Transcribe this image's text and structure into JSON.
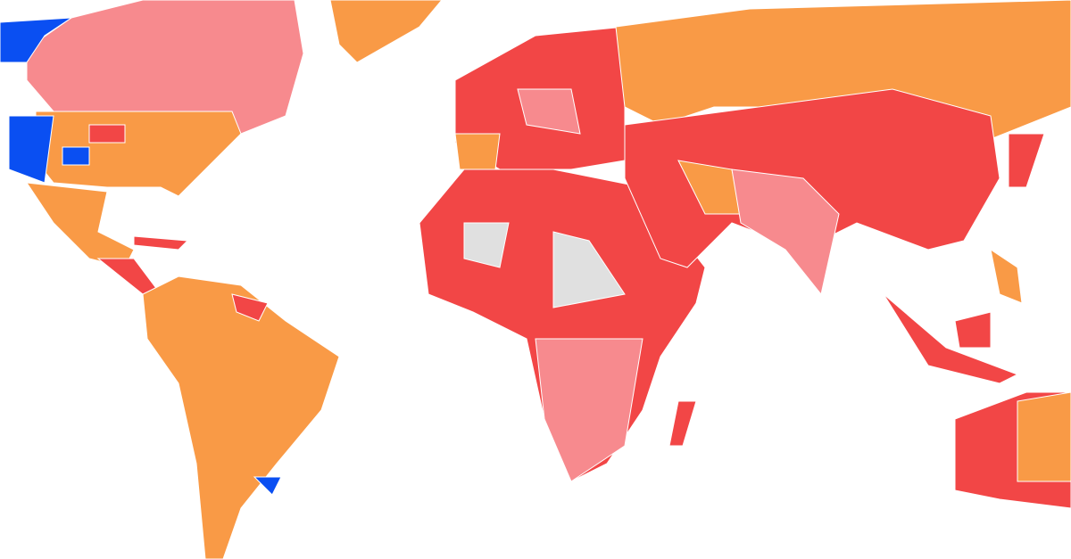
{
  "map": {
    "colors": [
      "#f24646",
      "#f78a8e",
      "#f99a46",
      "#0a4ff2",
      "#e0e0e0"
    ]
  }
}
